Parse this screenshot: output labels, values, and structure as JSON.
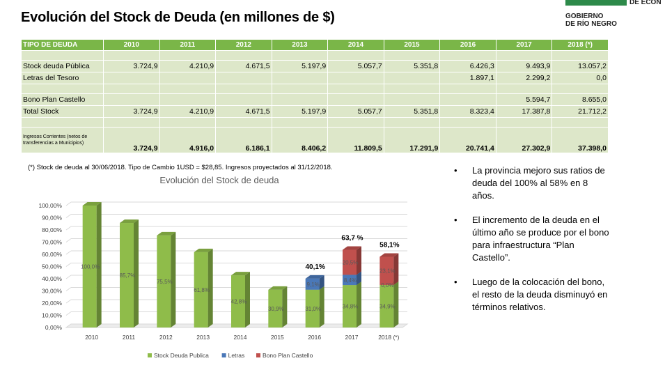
{
  "page": {
    "title": "Evolución del Stock de Deuda (en millones de $)",
    "logo_lines": [
      "GOBIERNO",
      "DE RÍO NEGRO"
    ],
    "logo_partial": "DE ECON",
    "footnote": "(*) Stock de deuda al 30/06/2018. Tipo de Cambio 1USD = $28,85. Ingresos proyectados al 31/12/2018."
  },
  "table": {
    "headers": [
      "TIPO DE DEUDA",
      "2010",
      "2011",
      "2012",
      "2013",
      "2014",
      "2015",
      "2016",
      "2017",
      "2018 (*)"
    ],
    "rows": [
      {
        "label": "Stock deuda Pública",
        "values": [
          "3.724,9",
          "4.210,9",
          "4.671,5",
          "5.197,9",
          "5.057,7",
          "5.351,8",
          "6.426,3",
          "9.493,9",
          "13.057,2"
        ]
      },
      {
        "label": "Letras del Tesoro",
        "values": [
          "",
          "",
          "",
          "",
          "",
          "",
          "1.897,1",
          "2.299,2",
          "0,0"
        ]
      },
      {
        "label": "Bono Plan Castello",
        "values": [
          "",
          "",
          "",
          "",
          "",
          "",
          "",
          "5.594,7",
          "8.655,0"
        ]
      },
      {
        "label": "Total Stock",
        "values": [
          "3.724,9",
          "4.210,9",
          "4.671,5",
          "5.197,9",
          "5.057,7",
          "5.351,8",
          "8.323,4",
          "17.387,8",
          "21.712,2"
        ]
      },
      {
        "label": "Ingresos Corrientes (netos de transferencias a Municipios)",
        "values": [
          "3.724,9",
          "4.916,0",
          "6.186,1",
          "8.406,2",
          "11.809,5",
          "17.291,9",
          "20.741,4",
          "27.302,9",
          "37.398,0"
        ]
      }
    ]
  },
  "bullets": [
    "La provincia mejoro sus ratios de deuda del 100% al 58% en 8 años.",
    "El incremento de la deuda en el último año se produce por el bono para infraestructura “Plan Castello”.",
    "Luego de la colocación del bono, el resto de la deuda disminuyó en términos relativos."
  ],
  "chart_data": {
    "type": "bar",
    "stacked": true,
    "title": "Evolución del Stock de deuda",
    "categories": [
      "2010",
      "2011",
      "2012",
      "2013",
      "2014",
      "2015",
      "2016",
      "2017",
      "2018 (*)"
    ],
    "series": [
      {
        "name": "Stock Deuda Publica",
        "color": "#8fbc4a",
        "values": [
          100.0,
          85.7,
          75.5,
          61.8,
          42.8,
          30.9,
          31.0,
          34.8,
          34.9
        ],
        "labels": [
          "100,0%",
          "85,7%",
          "75,5%",
          "61,8%",
          "42,8%",
          "30,9%",
          "31,0%",
          "34,8%",
          "34,9%"
        ]
      },
      {
        "name": "Letras",
        "color": "#4a78b8",
        "values": [
          0,
          0,
          0,
          0,
          0,
          0,
          9.1,
          8.4,
          0.0
        ],
        "labels": [
          "",
          "",
          "",
          "",
          "",
          "",
          "9,1%",
          "8,4%",
          "0,0%"
        ]
      },
      {
        "name": "Bono Plan Castello",
        "color": "#c0504d",
        "values": [
          0,
          0,
          0,
          0,
          0,
          0,
          0,
          20.5,
          23.1
        ],
        "labels": [
          "",
          "",
          "",
          "",
          "",
          "",
          "",
          "20,5%",
          "23,1%"
        ]
      }
    ],
    "totals": [
      "",
      "",
      "",
      "",
      "",
      "",
      "40,1%",
      "63,7 %",
      "58,1%"
    ],
    "y_ticks": [
      "0,00%",
      "10,00%",
      "20,00%",
      "30,00%",
      "40,00%",
      "50,00%",
      "60,00%",
      "70,00%",
      "80,00%",
      "90,00%",
      "100,00%"
    ],
    "ylim": [
      0,
      100
    ],
    "grid": true,
    "legend_position": "bottom"
  }
}
